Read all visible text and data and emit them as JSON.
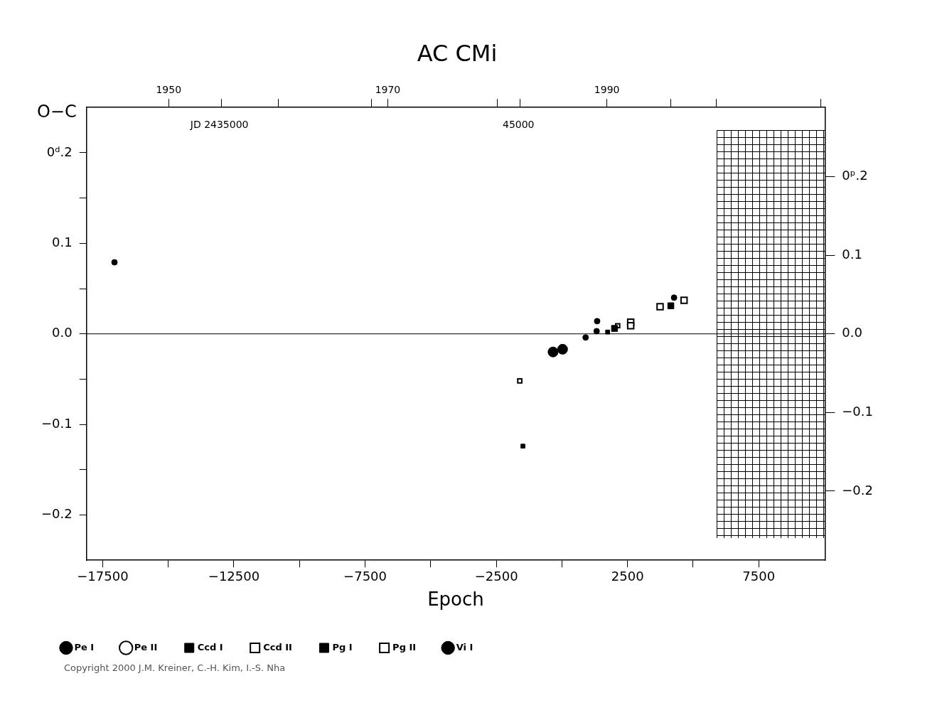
{
  "chart_data": {
    "type": "scatter",
    "title": "AC CMi",
    "xlabel": "Epoch",
    "ylabel": "O−C",
    "xlim": [
      -18115,
      10020
    ],
    "xticks": [
      {
        "value": -17500,
        "label": "−17500"
      },
      {
        "value": -15000,
        "label": null
      },
      {
        "value": -12500,
        "label": "−12500"
      },
      {
        "value": -10000,
        "label": null
      },
      {
        "value": -7500,
        "label": "−7500"
      },
      {
        "value": -5000,
        "label": null
      },
      {
        "value": -2500,
        "label": "−2500"
      },
      {
        "value": 0,
        "label": null
      },
      2500,
      {
        "value": 5000,
        "label": null
      },
      7500
    ],
    "ylim": [
      -0.25,
      0.25
    ],
    "yticks": [
      {
        "value": -0.2,
        "label": "−0.2"
      },
      {
        "value": -0.15,
        "label": null
      },
      {
        "value": -0.1,
        "label": "−0.1"
      },
      {
        "value": -0.05,
        "label": null
      },
      {
        "value": 0,
        "label": "0.0"
      },
      {
        "value": 0.05,
        "label": null
      },
      0.1,
      {
        "value": 0.15,
        "label": null
      },
      {
        "value": 0.2,
        "label": "0ᵈ.2"
      }
    ],
    "y2lim": [
      -0.288,
      0.288
    ],
    "y2ticks": [
      {
        "value": -0.2,
        "label": "−0.2"
      },
      {
        "value": -0.1,
        "label": "−0.1"
      },
      {
        "value": 0,
        "label": "0.0"
      },
      0.1,
      {
        "value": 0.2,
        "label": "0ᵖ.2"
      }
    ],
    "x2lim": [
      1942.5,
      2009.9
    ],
    "x2ticks": [
      1950,
      {
        "value": 1954.8,
        "label": null
      },
      {
        "value": 1960,
        "label": null
      },
      {
        "value": 1968.5,
        "label": null
      },
      1970,
      {
        "value": 1980,
        "label": null
      },
      {
        "value": 1982.1,
        "label": null
      },
      1990,
      {
        "value": 1995.8,
        "label": null
      },
      {
        "value": 2000,
        "label": null
      },
      {
        "value": 2009.5,
        "label": null
      }
    ],
    "ref_lines": [
      {
        "axis": "y",
        "value": 0,
        "color": "#000000"
      }
    ],
    "legend": "bottom",
    "annotations": [
      "JD 2435000",
      "45000",
      "Copyright 2000 J.M. Kreiner, C.-H. Kim, I.-S. Nha"
    ],
    "series": [
      {
        "name": "Pe I",
        "color": "#000000",
        "marker": "circle",
        "x": [
          -339,
          25
        ],
        "values": [
          -0.02,
          -0.017
        ]
      },
      {
        "name": "Pe II",
        "color": "#000000",
        "marker": "circle"
      },
      {
        "name": "Ccd I",
        "color": "#000000",
        "marker": "square",
        "x": [
          2004,
          4149
        ],
        "values": [
          0.006,
          0.031
        ]
      },
      {
        "name": "Ccd II",
        "color": "#000000",
        "marker": "square",
        "x": [
          2620,
          2620,
          3740,
          4653
        ],
        "values": [
          0.013,
          0.009,
          0.03,
          0.037
        ]
      },
      {
        "name": "Pg I",
        "color": "#000000",
        "marker": "square",
        "x": [
          -1487,
          1741
        ],
        "values": [
          -0.124,
          0.002
        ]
      },
      {
        "name": "Pg II",
        "color": "#000000",
        "marker": "square",
        "x": [
          -1607,
          2125
        ],
        "values": [
          -0.052,
          0.009
        ]
      },
      {
        "name": "Vi I",
        "color": "#000000",
        "marker": "circle",
        "x": [
          -17050,
          902,
          1341,
          1322,
          4272
        ],
        "values": [
          0.079,
          -0.004,
          0.014,
          0.003,
          0.04
        ]
      }
    ]
  }
}
